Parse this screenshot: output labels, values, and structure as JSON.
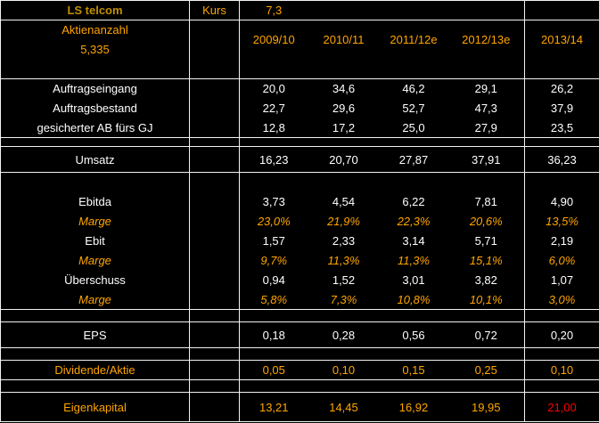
{
  "colors": {
    "background": "#000000",
    "gridline": "#F2F2F2",
    "company_gold": "#BF9000",
    "accent_orange": "#FFA500",
    "value_white": "#FFFFFF",
    "alert_red": "#FF0000"
  },
  "title_row": {
    "company": "LS telcom",
    "kurs_label": "Kurs",
    "kurs_value": "7,3"
  },
  "header": {
    "shares_label": "Aktienanzahl",
    "shares_value": "5,335",
    "years": [
      "2009/10",
      "2010/11",
      "2011/12e",
      "2012/13e",
      "2013/14"
    ]
  },
  "rows": [
    {
      "label": "Auftragseingang",
      "style": "white",
      "values": [
        "20,0",
        "34,6",
        "46,2",
        "29,1",
        "26,2"
      ]
    },
    {
      "label": "Auftragsbestand",
      "style": "white",
      "values": [
        "22,7",
        "29,6",
        "52,7",
        "47,3",
        "37,9"
      ]
    },
    {
      "label": "gesicherter AB fürs GJ",
      "style": "white",
      "values": [
        "12,8",
        "17,2",
        "25,0",
        "27,9",
        "23,5"
      ]
    },
    {
      "label": "Umsatz",
      "style": "white",
      "values": [
        "16,23",
        "20,70",
        "27,87",
        "37,91",
        "36,23"
      ]
    },
    {
      "label": "Ebitda",
      "style": "white",
      "values": [
        "3,73",
        "4,54",
        "6,22",
        "7,81",
        "4,90"
      ]
    },
    {
      "label": "Marge",
      "style": "marge",
      "values": [
        "23,0%",
        "21,9%",
        "22,3%",
        "20,6%",
        "13,5%"
      ]
    },
    {
      "label": "Ebit",
      "style": "white",
      "values": [
        "1,57",
        "2,33",
        "3,14",
        "5,71",
        "2,19"
      ]
    },
    {
      "label": "Marge",
      "style": "marge",
      "values": [
        "9,7%",
        "11,3%",
        "11,3%",
        "15,1%",
        "6,0%"
      ]
    },
    {
      "label": "Überschuss",
      "style": "white",
      "values": [
        "0,94",
        "1,52",
        "3,01",
        "3,82",
        "1,07"
      ]
    },
    {
      "label": "Marge",
      "style": "marge",
      "values": [
        "5,8%",
        "7,3%",
        "10,8%",
        "10,1%",
        "3,0%"
      ]
    },
    {
      "label": "EPS",
      "style": "white",
      "values": [
        "0,18",
        "0,28",
        "0,56",
        "0,72",
        "0,20"
      ]
    },
    {
      "label": "Dividende/Aktie",
      "style": "orange",
      "values": [
        "0,05",
        "0,10",
        "0,15",
        "0,25",
        "0,10"
      ]
    },
    {
      "label": "Eigenkapital",
      "style": "orange",
      "last_value_red": true,
      "values": [
        "13,21",
        "14,45",
        "16,92",
        "19,95",
        "21,00"
      ]
    }
  ]
}
